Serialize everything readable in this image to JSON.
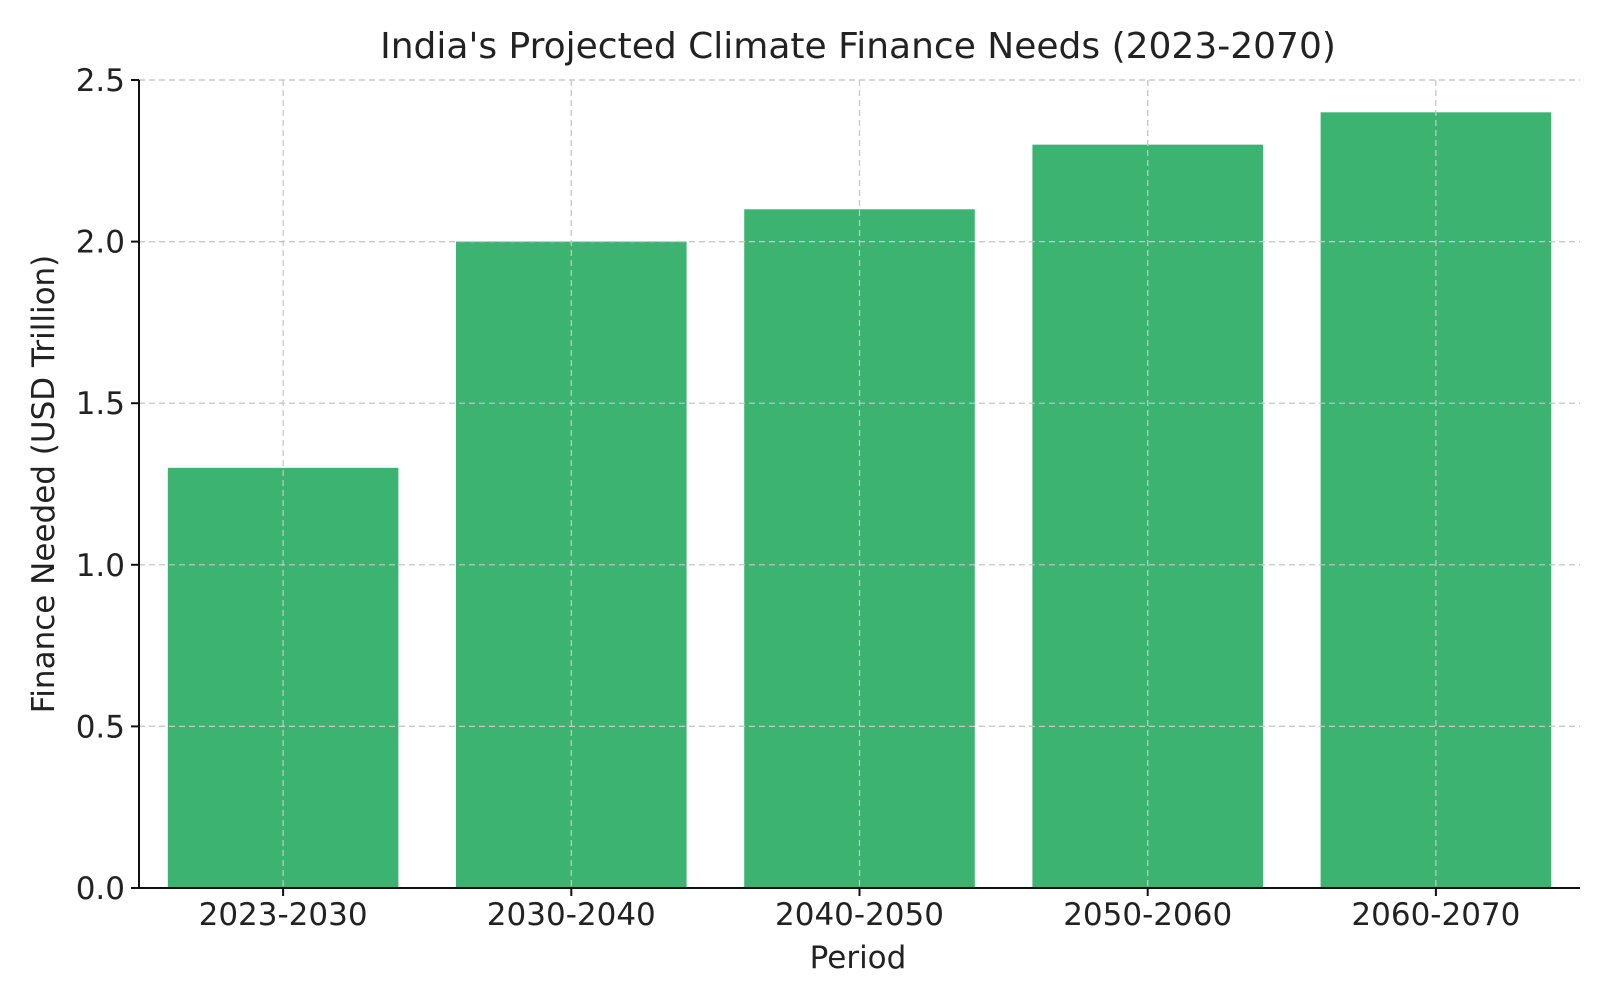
{
  "chart_data": {
    "type": "bar",
    "title": "India's Projected Climate Finance Needs (2023-2070)",
    "xlabel": "Period",
    "ylabel": "Finance Needed (USD Trillion)",
    "categories": [
      "2023-2030",
      "2030-2040",
      "2040-2050",
      "2050-2060",
      "2060-2070"
    ],
    "values": [
      1.3,
      2.0,
      2.1,
      2.3,
      2.4
    ],
    "ylim": [
      0,
      2.5
    ],
    "yticks": [
      0.0,
      0.5,
      1.0,
      1.5,
      2.0,
      2.5
    ],
    "ytick_labels": [
      "0.0",
      "0.5",
      "1.0",
      "1.5",
      "2.0",
      "2.5"
    ],
    "bar_color": "#3cb371",
    "grid": true
  }
}
